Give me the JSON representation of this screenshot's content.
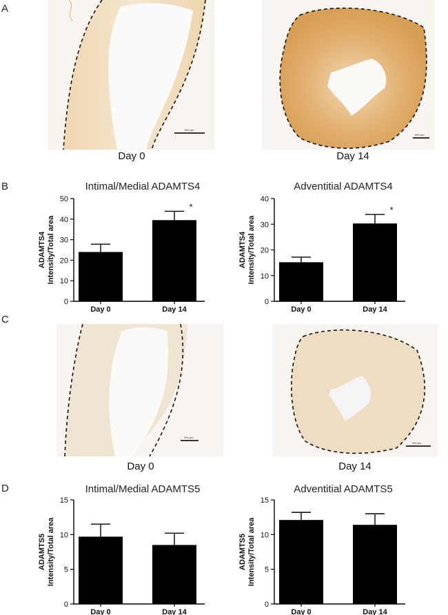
{
  "panels": {
    "a": "A",
    "b": "B",
    "c": "C",
    "d": "D"
  },
  "micrographs": {
    "a_left_caption": "Day 0",
    "a_right_caption": "Day 14",
    "c_left_caption": "Day 0",
    "c_right_caption": "Day 14",
    "scale_label": "500 µm",
    "stain_colors": {
      "adamts4_tissue": "#e9c48f",
      "adamts4_fiber": "#c98a3a",
      "adamts5_tissue": "#efe2cf",
      "adamts5_fiber": "#d2a86b",
      "lumen": "#f8f7f6"
    }
  },
  "chart_data": [
    {
      "id": "b_left",
      "type": "bar",
      "title": "Intimal/Medial ADAMTS4",
      "ylabel_line1": "ADAMTS4",
      "ylabel_line2": "Intensity/Total area",
      "xlabel": "",
      "categories": [
        "Day 0",
        "Day 14"
      ],
      "values": [
        24,
        39.5
      ],
      "errors": [
        3.8,
        4.3
      ],
      "significance": [
        "",
        "*"
      ],
      "ylim": [
        0,
        50
      ],
      "yticks": [
        0,
        10,
        20,
        30,
        40,
        50
      ],
      "bar_color": "#000000"
    },
    {
      "id": "b_right",
      "type": "bar",
      "title": "Adventitial ADAMTS4",
      "ylabel_line1": "ADAMTS4",
      "ylabel_line2": "Intensity/Total area",
      "xlabel": "",
      "categories": [
        "Day 0",
        "Day 14"
      ],
      "values": [
        15.2,
        30.3
      ],
      "errors": [
        2.0,
        3.5
      ],
      "significance": [
        "",
        "*"
      ],
      "ylim": [
        0,
        40
      ],
      "yticks": [
        0,
        10,
        20,
        30,
        40
      ],
      "bar_color": "#000000"
    },
    {
      "id": "d_left",
      "type": "bar",
      "title": "Intimal/Medial ADAMTS5",
      "ylabel_line1": "ADAMTS5",
      "ylabel_line2": "Intensity/Total area",
      "xlabel": "",
      "categories": [
        "Day 0",
        "Day 14"
      ],
      "values": [
        9.7,
        8.5
      ],
      "errors": [
        1.8,
        1.7
      ],
      "significance": [
        "",
        ""
      ],
      "ylim": [
        0,
        15
      ],
      "yticks": [
        0,
        5,
        10,
        15
      ],
      "bar_color": "#000000"
    },
    {
      "id": "d_right",
      "type": "bar",
      "title": "Adventitial ADAMTS5",
      "ylabel_line1": "ADAMTS5",
      "ylabel_line2": "Intensity/Total area",
      "xlabel": "",
      "categories": [
        "Day 0",
        "Day 14"
      ],
      "values": [
        12.1,
        11.4
      ],
      "errors": [
        1.1,
        1.6
      ],
      "significance": [
        "",
        ""
      ],
      "ylim": [
        0,
        15
      ],
      "yticks": [
        0,
        5,
        10,
        15
      ],
      "bar_color": "#000000"
    }
  ]
}
